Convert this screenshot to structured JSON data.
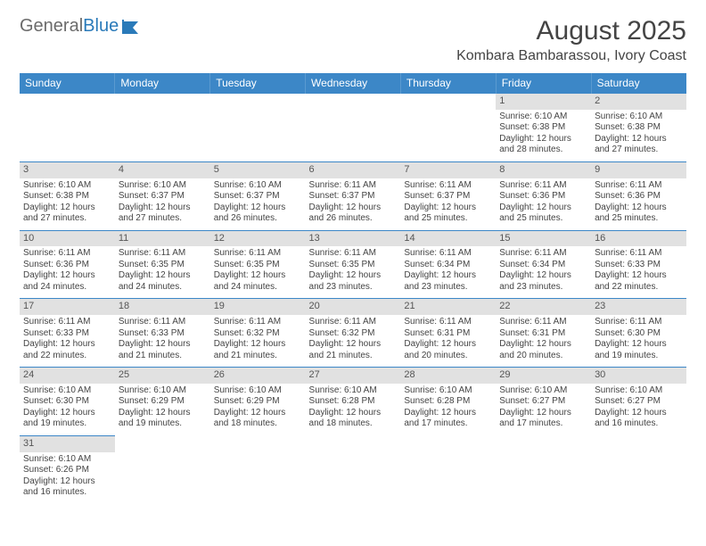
{
  "logo": {
    "general": "General",
    "blue": "Blue"
  },
  "title": "August 2025",
  "location": "Kombara Bambarassou, Ivory Coast",
  "colors": {
    "header_bg": "#3c87c7",
    "header_text": "#ffffff",
    "daynum_bg": "#e1e1e1",
    "border": "#3c87c7",
    "text": "#444444"
  },
  "day_headers": [
    "Sunday",
    "Monday",
    "Tuesday",
    "Wednesday",
    "Thursday",
    "Friday",
    "Saturday"
  ],
  "weeks": [
    [
      null,
      null,
      null,
      null,
      null,
      {
        "n": "1",
        "sunrise": "Sunrise: 6:10 AM",
        "sunset": "Sunset: 6:38 PM",
        "d1": "Daylight: 12 hours",
        "d2": "and 28 minutes."
      },
      {
        "n": "2",
        "sunrise": "Sunrise: 6:10 AM",
        "sunset": "Sunset: 6:38 PM",
        "d1": "Daylight: 12 hours",
        "d2": "and 27 minutes."
      }
    ],
    [
      {
        "n": "3",
        "sunrise": "Sunrise: 6:10 AM",
        "sunset": "Sunset: 6:38 PM",
        "d1": "Daylight: 12 hours",
        "d2": "and 27 minutes."
      },
      {
        "n": "4",
        "sunrise": "Sunrise: 6:10 AM",
        "sunset": "Sunset: 6:37 PM",
        "d1": "Daylight: 12 hours",
        "d2": "and 27 minutes."
      },
      {
        "n": "5",
        "sunrise": "Sunrise: 6:10 AM",
        "sunset": "Sunset: 6:37 PM",
        "d1": "Daylight: 12 hours",
        "d2": "and 26 minutes."
      },
      {
        "n": "6",
        "sunrise": "Sunrise: 6:11 AM",
        "sunset": "Sunset: 6:37 PM",
        "d1": "Daylight: 12 hours",
        "d2": "and 26 minutes."
      },
      {
        "n": "7",
        "sunrise": "Sunrise: 6:11 AM",
        "sunset": "Sunset: 6:37 PM",
        "d1": "Daylight: 12 hours",
        "d2": "and 25 minutes."
      },
      {
        "n": "8",
        "sunrise": "Sunrise: 6:11 AM",
        "sunset": "Sunset: 6:36 PM",
        "d1": "Daylight: 12 hours",
        "d2": "and 25 minutes."
      },
      {
        "n": "9",
        "sunrise": "Sunrise: 6:11 AM",
        "sunset": "Sunset: 6:36 PM",
        "d1": "Daylight: 12 hours",
        "d2": "and 25 minutes."
      }
    ],
    [
      {
        "n": "10",
        "sunrise": "Sunrise: 6:11 AM",
        "sunset": "Sunset: 6:36 PM",
        "d1": "Daylight: 12 hours",
        "d2": "and 24 minutes."
      },
      {
        "n": "11",
        "sunrise": "Sunrise: 6:11 AM",
        "sunset": "Sunset: 6:35 PM",
        "d1": "Daylight: 12 hours",
        "d2": "and 24 minutes."
      },
      {
        "n": "12",
        "sunrise": "Sunrise: 6:11 AM",
        "sunset": "Sunset: 6:35 PM",
        "d1": "Daylight: 12 hours",
        "d2": "and 24 minutes."
      },
      {
        "n": "13",
        "sunrise": "Sunrise: 6:11 AM",
        "sunset": "Sunset: 6:35 PM",
        "d1": "Daylight: 12 hours",
        "d2": "and 23 minutes."
      },
      {
        "n": "14",
        "sunrise": "Sunrise: 6:11 AM",
        "sunset": "Sunset: 6:34 PM",
        "d1": "Daylight: 12 hours",
        "d2": "and 23 minutes."
      },
      {
        "n": "15",
        "sunrise": "Sunrise: 6:11 AM",
        "sunset": "Sunset: 6:34 PM",
        "d1": "Daylight: 12 hours",
        "d2": "and 23 minutes."
      },
      {
        "n": "16",
        "sunrise": "Sunrise: 6:11 AM",
        "sunset": "Sunset: 6:33 PM",
        "d1": "Daylight: 12 hours",
        "d2": "and 22 minutes."
      }
    ],
    [
      {
        "n": "17",
        "sunrise": "Sunrise: 6:11 AM",
        "sunset": "Sunset: 6:33 PM",
        "d1": "Daylight: 12 hours",
        "d2": "and 22 minutes."
      },
      {
        "n": "18",
        "sunrise": "Sunrise: 6:11 AM",
        "sunset": "Sunset: 6:33 PM",
        "d1": "Daylight: 12 hours",
        "d2": "and 21 minutes."
      },
      {
        "n": "19",
        "sunrise": "Sunrise: 6:11 AM",
        "sunset": "Sunset: 6:32 PM",
        "d1": "Daylight: 12 hours",
        "d2": "and 21 minutes."
      },
      {
        "n": "20",
        "sunrise": "Sunrise: 6:11 AM",
        "sunset": "Sunset: 6:32 PM",
        "d1": "Daylight: 12 hours",
        "d2": "and 21 minutes."
      },
      {
        "n": "21",
        "sunrise": "Sunrise: 6:11 AM",
        "sunset": "Sunset: 6:31 PM",
        "d1": "Daylight: 12 hours",
        "d2": "and 20 minutes."
      },
      {
        "n": "22",
        "sunrise": "Sunrise: 6:11 AM",
        "sunset": "Sunset: 6:31 PM",
        "d1": "Daylight: 12 hours",
        "d2": "and 20 minutes."
      },
      {
        "n": "23",
        "sunrise": "Sunrise: 6:11 AM",
        "sunset": "Sunset: 6:30 PM",
        "d1": "Daylight: 12 hours",
        "d2": "and 19 minutes."
      }
    ],
    [
      {
        "n": "24",
        "sunrise": "Sunrise: 6:10 AM",
        "sunset": "Sunset: 6:30 PM",
        "d1": "Daylight: 12 hours",
        "d2": "and 19 minutes."
      },
      {
        "n": "25",
        "sunrise": "Sunrise: 6:10 AM",
        "sunset": "Sunset: 6:29 PM",
        "d1": "Daylight: 12 hours",
        "d2": "and 19 minutes."
      },
      {
        "n": "26",
        "sunrise": "Sunrise: 6:10 AM",
        "sunset": "Sunset: 6:29 PM",
        "d1": "Daylight: 12 hours",
        "d2": "and 18 minutes."
      },
      {
        "n": "27",
        "sunrise": "Sunrise: 6:10 AM",
        "sunset": "Sunset: 6:28 PM",
        "d1": "Daylight: 12 hours",
        "d2": "and 18 minutes."
      },
      {
        "n": "28",
        "sunrise": "Sunrise: 6:10 AM",
        "sunset": "Sunset: 6:28 PM",
        "d1": "Daylight: 12 hours",
        "d2": "and 17 minutes."
      },
      {
        "n": "29",
        "sunrise": "Sunrise: 6:10 AM",
        "sunset": "Sunset: 6:27 PM",
        "d1": "Daylight: 12 hours",
        "d2": "and 17 minutes."
      },
      {
        "n": "30",
        "sunrise": "Sunrise: 6:10 AM",
        "sunset": "Sunset: 6:27 PM",
        "d1": "Daylight: 12 hours",
        "d2": "and 16 minutes."
      }
    ],
    [
      {
        "n": "31",
        "sunrise": "Sunrise: 6:10 AM",
        "sunset": "Sunset: 6:26 PM",
        "d1": "Daylight: 12 hours",
        "d2": "and 16 minutes."
      },
      null,
      null,
      null,
      null,
      null,
      null
    ]
  ]
}
